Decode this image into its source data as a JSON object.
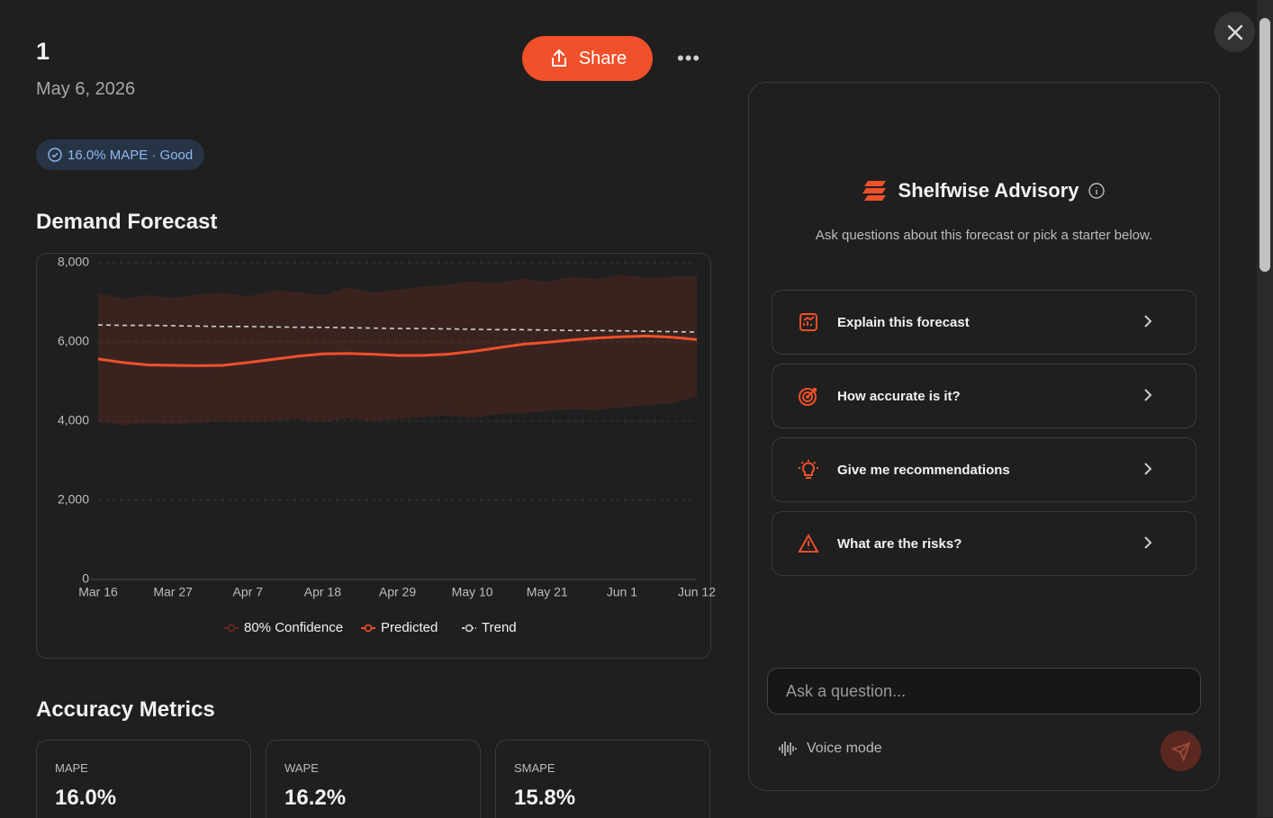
{
  "header": {
    "title": "1",
    "date": "May 6, 2026",
    "share": "Share",
    "badge": "16.0% MAPE · Good"
  },
  "sections": {
    "forecast": "Demand Forecast",
    "metrics": "Accuracy Metrics"
  },
  "chart_data": {
    "type": "line",
    "categories": [
      "Mar 16",
      null,
      null,
      "Mar 27",
      null,
      null,
      "Apr 7",
      null,
      null,
      "Apr 18",
      null,
      null,
      "Apr 29",
      null,
      null,
      "May 10",
      null,
      null,
      "May 21",
      null,
      null,
      "Jun 1",
      null,
      null,
      "Jun 12"
    ],
    "series": [
      {
        "name": "80% Confidence",
        "color": "#6b2a1f",
        "upper": [
          7230,
          7100,
          7180,
          7120,
          7200,
          7250,
          7150,
          7300,
          7260,
          7180,
          7380,
          7250,
          7320,
          7400,
          7450,
          7530,
          7480,
          7600,
          7520,
          7650,
          7580,
          7700,
          7620,
          7650,
          7680
        ],
        "lower": [
          3980,
          3900,
          3950,
          3920,
          3960,
          4000,
          3980,
          4010,
          4050,
          3980,
          4060,
          4000,
          4050,
          4100,
          4150,
          4080,
          4180,
          4200,
          4250,
          4300,
          4280,
          4350,
          4400,
          4450,
          4610
        ]
      },
      {
        "name": "Predicted",
        "color": "#f0502a",
        "values": [
          5570,
          5480,
          5420,
          5410,
          5400,
          5410,
          5480,
          5560,
          5640,
          5700,
          5710,
          5690,
          5660,
          5660,
          5690,
          5760,
          5850,
          5940,
          5990,
          6050,
          6100,
          6130,
          6150,
          6120,
          6060
        ]
      },
      {
        "name": "Trend",
        "color": "#cfcfcf",
        "dashed": true,
        "values": [
          6430,
          6420,
          6420,
          6410,
          6400,
          6390,
          6390,
          6380,
          6370,
          6370,
          6360,
          6350,
          6340,
          6340,
          6330,
          6320,
          6310,
          6310,
          6300,
          6290,
          6290,
          6280,
          6270,
          6260,
          6250
        ]
      }
    ],
    "ylim": [
      0,
      8000
    ],
    "yticks": [
      0,
      {
        "value": 2000,
        "label": "2,000"
      },
      {
        "value": 4000,
        "label": "4,000"
      },
      {
        "value": 6000,
        "label": "6,000"
      },
      {
        "value": 8000,
        "label": "8,000"
      }
    ],
    "grid": true
  },
  "metrics": [
    {
      "label": "MAPE",
      "value": "16.0%"
    },
    {
      "label": "WAPE",
      "value": "16.2%"
    },
    {
      "label": "SMAPE",
      "value": "15.8%"
    }
  ],
  "advisory": {
    "title": "Shelfwise Advisory",
    "subtitle": "Ask questions about this forecast or pick a starter below.",
    "starters": [
      "Explain this forecast",
      "How accurate is it?",
      "Give me recommendations",
      "What are the risks?"
    ],
    "placeholder": "Ask a question...",
    "voice": "Voice mode"
  }
}
